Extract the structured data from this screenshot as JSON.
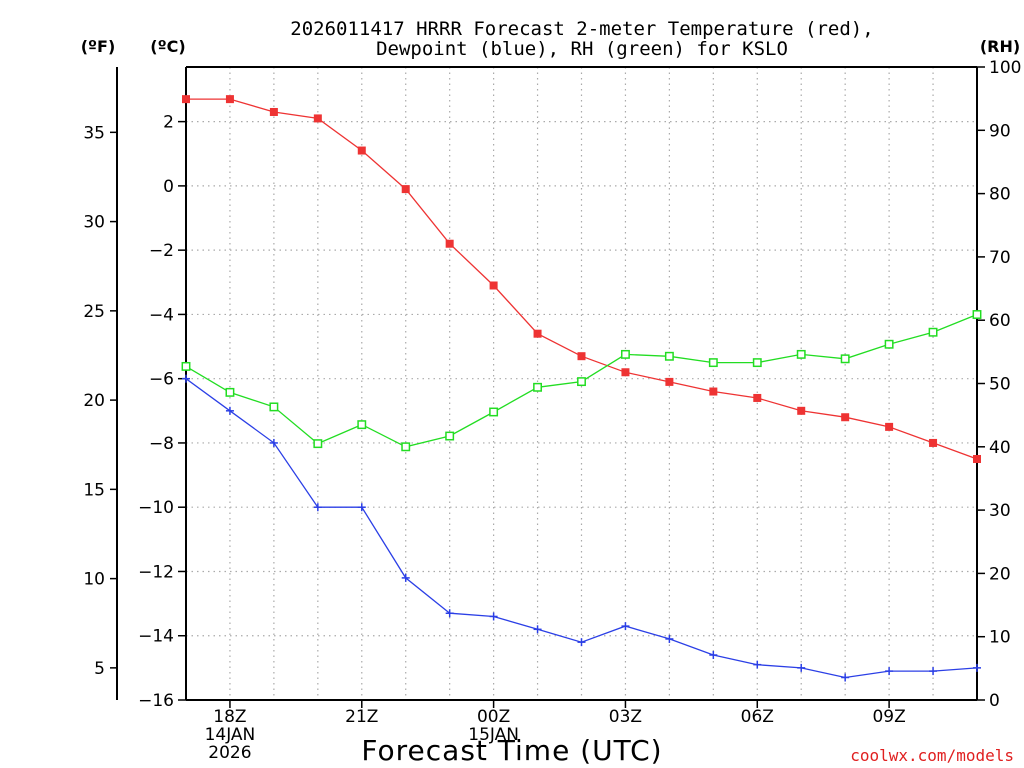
{
  "title": {
    "line1": "2026011417 HRRR Forecast 2-meter Temperature (red),",
    "line2": "Dewpoint (blue), RH (green) for KSLO"
  },
  "units": {
    "fahrenheit": "(ºF)",
    "celsius": "(ºC)",
    "rh": "(RH)"
  },
  "xlabel": "Forecast Time (UTC)",
  "credit": "coolwx.com/models",
  "colors": {
    "temp": "#ee3333",
    "dewpoint": "#2b3fe6",
    "rh": "#22dd22",
    "grid": "#aaaaaa"
  },
  "chart_data": {
    "type": "line",
    "x_hours": [
      17,
      18,
      19,
      20,
      21,
      22,
      23,
      24,
      25,
      26,
      27,
      28,
      29,
      30,
      31,
      32,
      33,
      34,
      35
    ],
    "x_ticks": [
      {
        "hour": 18,
        "lines": [
          "18Z",
          "14JAN",
          "2026"
        ]
      },
      {
        "hour": 21,
        "lines": [
          "21Z"
        ]
      },
      {
        "hour": 24,
        "lines": [
          "00Z",
          "15JAN"
        ]
      },
      {
        "hour": 27,
        "lines": [
          "03Z"
        ]
      },
      {
        "hour": 30,
        "lines": [
          "06Z"
        ]
      },
      {
        "hour": 33,
        "lines": [
          "09Z"
        ]
      }
    ],
    "xlim": [
      17,
      35
    ],
    "y_celsius": {
      "lim": [
        -16,
        3.7
      ],
      "ticks": [
        2,
        0,
        -2,
        -4,
        -6,
        -8,
        -10,
        -12,
        -14,
        -16
      ],
      "tick_labels": [
        "2",
        "0",
        "−2",
        "−4",
        "−6",
        "−8",
        "−10",
        "−12",
        "−14",
        "−16"
      ]
    },
    "y_fahrenheit": {
      "ticks": [
        35,
        30,
        25,
        20,
        15,
        10,
        5
      ],
      "tick_labels": [
        "35",
        "30",
        "25",
        "20",
        "15",
        "10",
        "5"
      ]
    },
    "y_rh": {
      "lim": [
        0,
        100
      ],
      "ticks": [
        100,
        90,
        80,
        70,
        60,
        50,
        40,
        30,
        20,
        10,
        0
      ],
      "tick_labels": [
        "100",
        "90",
        "80",
        "70",
        "60",
        "50",
        "40",
        "30",
        "20",
        "10",
        "0"
      ]
    },
    "series": [
      {
        "name": "2-meter Temperature",
        "unit": "C",
        "marker": "filled-square",
        "values": [
          2.7,
          2.7,
          2.3,
          2.1,
          1.1,
          -0.1,
          -1.8,
          -3.1,
          -4.6,
          -5.3,
          -5.8,
          -6.1,
          -6.4,
          -6.6,
          -7.0,
          -7.2,
          -7.5,
          -8.0,
          -8.5
        ]
      },
      {
        "name": "Dewpoint",
        "unit": "C",
        "marker": "plus",
        "values": [
          -6.0,
          -7.0,
          -8.0,
          -10.0,
          -10.0,
          -12.2,
          -13.3,
          -13.4,
          -13.8,
          -14.2,
          -13.7,
          -14.1,
          -14.6,
          -14.9,
          -15.0,
          -15.3,
          -15.1,
          -15.1,
          -15.0
        ]
      },
      {
        "name": "Relative Humidity",
        "unit": "%",
        "marker": "open-square",
        "values": [
          52.7,
          48.6,
          46.3,
          40.5,
          43.5,
          40.0,
          41.7,
          45.5,
          49.4,
          50.3,
          54.6,
          54.3,
          53.3,
          53.3,
          54.6,
          53.9,
          56.2,
          58.1,
          60.9
        ]
      }
    ]
  }
}
